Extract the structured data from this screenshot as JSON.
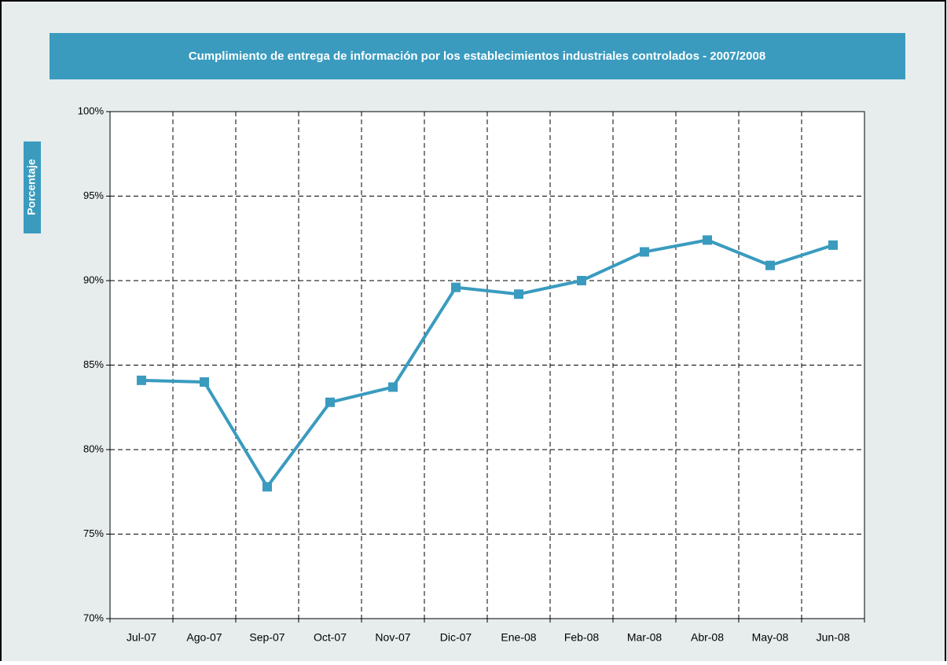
{
  "chart_data": {
    "type": "line",
    "title": "Cumplimiento de entrega de información por los establecimientos industriales controlados - 2007/2008",
    "y_label": "Porcentaje",
    "categories": [
      "Jul-07",
      "Ago-07",
      "Sep-07",
      "Oct-07",
      "Nov-07",
      "Dic-07",
      "Ene-08",
      "Feb-08",
      "Mar-08",
      "Abr-08",
      "May-08",
      "Jun-08"
    ],
    "values": [
      84.1,
      84.0,
      77.8,
      82.8,
      83.7,
      89.6,
      89.2,
      90.0,
      91.7,
      92.4,
      90.9,
      92.1
    ],
    "color": "#3a9bbf",
    "ylim": [
      70,
      100
    ],
    "yticks": [
      {
        "value": 70,
        "label": "70%"
      },
      {
        "value": 75,
        "label": "75%"
      },
      {
        "value": 80,
        "label": "80%"
      },
      {
        "value": 85,
        "label": "85%"
      },
      {
        "value": 90,
        "label": "90%"
      },
      {
        "value": 95,
        "label": "95%"
      },
      {
        "value": 100,
        "label": "100%"
      }
    ],
    "grid": true
  }
}
